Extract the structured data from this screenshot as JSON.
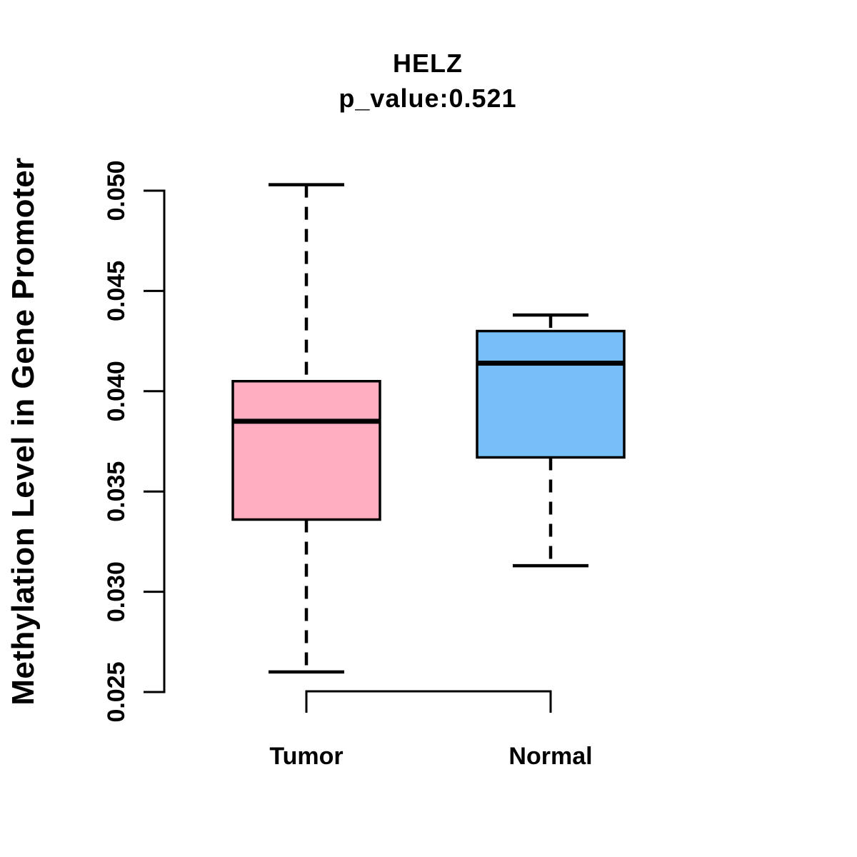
{
  "title": "HELZ",
  "subtitle": "p_value:0.521",
  "chart_data": {
    "type": "boxplot",
    "title": "HELZ",
    "subtitle": "p_value:0.521",
    "ylabel": "Methylation Level in Gene Promoter",
    "xlabel": "",
    "categories": [
      "Tumor",
      "Normal"
    ],
    "ylim": [
      0.025,
      0.05
    ],
    "ytick_labels": [
      "0.025",
      "0.030",
      "0.035",
      "0.040",
      "0.045",
      "0.050"
    ],
    "grid": "off",
    "legend": "none",
    "series": [
      {
        "name": "Tumor",
        "color": "#FFAEC1",
        "whisker_low": 0.026,
        "q1": 0.0336,
        "median": 0.0385,
        "q3": 0.0405,
        "whisker_high": 0.0503
      },
      {
        "name": "Normal",
        "color": "#77BFF7",
        "whisker_low": 0.0313,
        "q1": 0.0367,
        "median": 0.0414,
        "q3": 0.043,
        "whisker_high": 0.0438
      }
    ],
    "colors": {
      "tumor_box": "#FFAEC1",
      "normal_box": "#77BFF7",
      "line": "#000000",
      "background": "#FFFFFF"
    }
  }
}
